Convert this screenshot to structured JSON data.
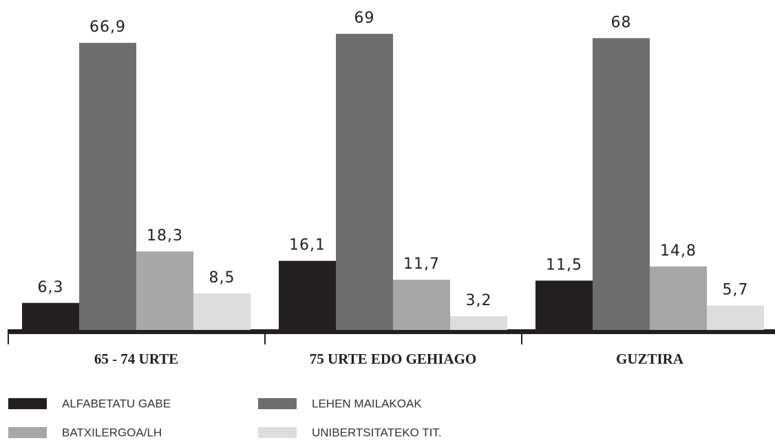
{
  "chart_data": {
    "type": "bar",
    "categories": [
      "65 - 74 URTE",
      "75 URTE EDO GEHIAGO",
      "GUZTIRA"
    ],
    "series": [
      {
        "name": "ALFABETATU GABE",
        "color": "#231f20",
        "values": [
          6.3,
          16.1,
          11.5
        ],
        "value_labels": [
          "6,3",
          "16,1",
          "11,5"
        ]
      },
      {
        "name": "LEHEN MAILAKOAK",
        "color": "#6d6e70",
        "values": [
          66.9,
          69,
          68
        ],
        "value_labels": [
          "66,9",
          "69",
          "68"
        ]
      },
      {
        "name": "BATXILERGOA/LH",
        "color": "#a6a7a9",
        "values": [
          18.3,
          11.7,
          14.8
        ],
        "value_labels": [
          "18,3",
          "11,7",
          "14,8"
        ]
      },
      {
        "name": "UNIBERTSITATEKO TIT.",
        "color": "#dcdddf",
        "values": [
          8.5,
          3.2,
          5.7
        ],
        "value_labels": [
          "8,5",
          "3,2",
          "5,7"
        ]
      }
    ]
  }
}
